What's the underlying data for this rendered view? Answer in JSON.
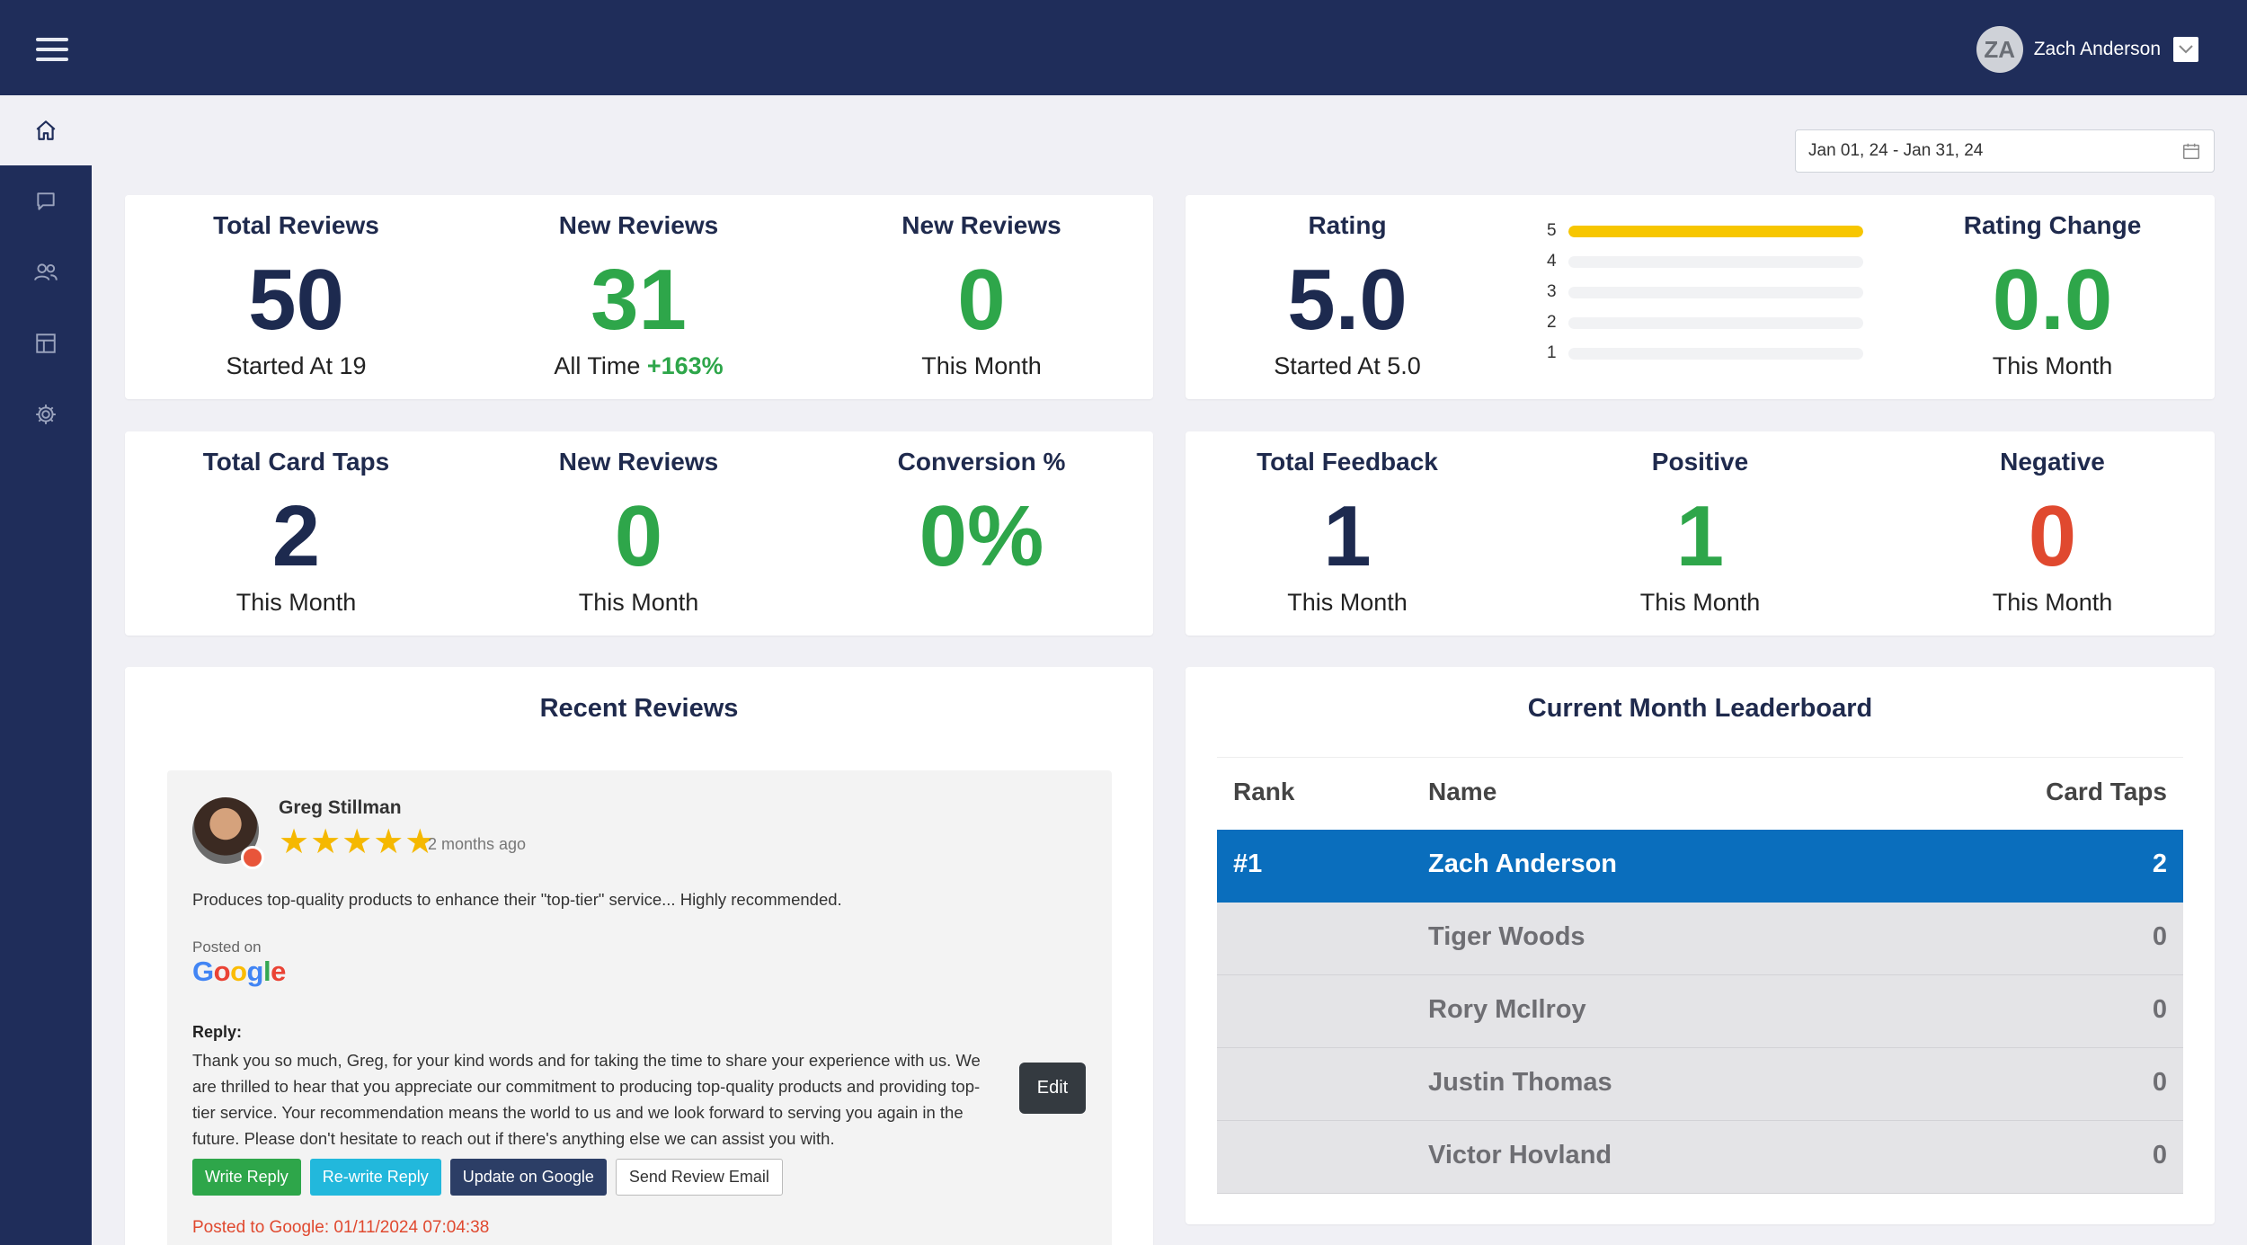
{
  "user": {
    "initials": "ZA",
    "name": "Zach Anderson"
  },
  "date_range": "Jan 01, 24 - Jan 31, 24",
  "stats_top_left": [
    {
      "label": "Total Reviews",
      "value": "50",
      "sub": "Started At 19"
    },
    {
      "label": "New Reviews",
      "value": "31",
      "sub_prefix": "All Time",
      "sub_pct": "+163%"
    },
    {
      "label": "New Reviews",
      "value": "0",
      "sub": "This Month"
    }
  ],
  "rating": {
    "label": "Rating",
    "value": "5.0",
    "sub": "Started At 5.0",
    "distribution": [
      {
        "stars": "5",
        "fraction": 1.0
      },
      {
        "stars": "4",
        "fraction": 0.0
      },
      {
        "stars": "3",
        "fraction": 0.0
      },
      {
        "stars": "2",
        "fraction": 0.0
      },
      {
        "stars": "1",
        "fraction": 0.0
      }
    ]
  },
  "rating_change": {
    "label": "Rating Change",
    "value": "0.0",
    "sub": "This Month"
  },
  "stats_mid_left": [
    {
      "label": "Total Card Taps",
      "value": "2",
      "sub": "This Month"
    },
    {
      "label": "New Reviews",
      "value": "0",
      "sub": "This Month"
    },
    {
      "label": "Conversion %",
      "value": "0%"
    }
  ],
  "stats_mid_right": [
    {
      "label": "Total Feedback",
      "value": "1",
      "sub": "This Month"
    },
    {
      "label": "Positive",
      "value": "1",
      "sub": "This Month"
    },
    {
      "label": "Negative",
      "value": "0",
      "sub": "This Month"
    }
  ],
  "recent_reviews": {
    "title": "Recent Reviews",
    "review": {
      "name": "Greg Stillman",
      "stars": "★★★★★",
      "time": "2 months ago",
      "text": "Produces top-quality products to enhance their \"top-tier\" service... Highly recommended.",
      "posted_on_label": "Posted on",
      "reply_label": "Reply:",
      "reply_text": "Thank you so much, Greg, for your kind words and for taking the time to share your experience with us. We are thrilled to hear that you appreciate our commitment to producing top-quality products and providing top-tier service. Your recommendation means the world to us and we look forward to serving you again in the future. Please don't hesitate to reach out if there's anything else we can assist you with.",
      "edit_label": "Edit",
      "buttons": {
        "write": "Write Reply",
        "rewrite": "Re-write Reply",
        "update": "Update on Google",
        "email": "Send Review Email"
      },
      "posted_status": "Posted to Google: 01/11/2024 07:04:38"
    }
  },
  "leaderboard": {
    "title": "Current Month Leaderboard",
    "headers": {
      "rank": "Rank",
      "name": "Name",
      "taps": "Card Taps"
    },
    "rows": [
      {
        "rank": "#1",
        "name": "Zach Anderson",
        "taps": "2"
      },
      {
        "rank": "",
        "name": "Tiger Woods",
        "taps": "0"
      },
      {
        "rank": "",
        "name": "Rory McIlroy",
        "taps": "0"
      },
      {
        "rank": "",
        "name": "Justin Thomas",
        "taps": "0"
      },
      {
        "rank": "",
        "name": "Victor Hovland",
        "taps": "0"
      }
    ]
  },
  "colors": {
    "navy": "#1f2d5a",
    "green": "#2ea64a",
    "red": "#e0492f",
    "gold": "#f7c600",
    "blue": "#0a6ebd"
  },
  "icons": {
    "menu": "hamburger-icon",
    "home": "home-icon",
    "reviews": "chat-icon",
    "users": "users-icon",
    "layout": "layout-icon",
    "settings": "gear-icon",
    "calendar": "calendar-icon"
  }
}
